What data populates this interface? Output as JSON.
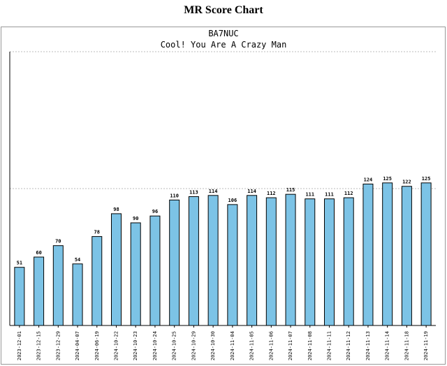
{
  "page": {
    "title": "MR Score Chart"
  },
  "chart_data": {
    "type": "bar",
    "title": "BA7NUC",
    "subtitle": "Cool! You Are A Crazy Man",
    "categories": [
      "2023-12-01",
      "2023-12-15",
      "2023-12-29",
      "2024-04-07",
      "2024-06-19",
      "2024-10-22",
      "2024-10-23",
      "2024-10-24",
      "2024-10-25",
      "2024-10-29",
      "2024-10-30",
      "2024-11-04",
      "2024-11-05",
      "2024-11-06",
      "2024-11-07",
      "2024-11-08",
      "2024-11-11",
      "2024-11-12",
      "2024-11-13",
      "2024-11-14",
      "2024-11-18",
      "2024-11-19"
    ],
    "values": [
      51,
      60,
      70,
      54,
      78,
      98,
      90,
      96,
      110,
      113,
      114,
      106,
      114,
      112,
      115,
      111,
      111,
      112,
      124,
      125,
      122,
      125
    ],
    "ylim": [
      0,
      240
    ],
    "gridlines": [
      120,
      240
    ],
    "bar_color": "#7cc3e6",
    "bar_stroke": "#000000",
    "grid_color": "#bbbbbb"
  }
}
